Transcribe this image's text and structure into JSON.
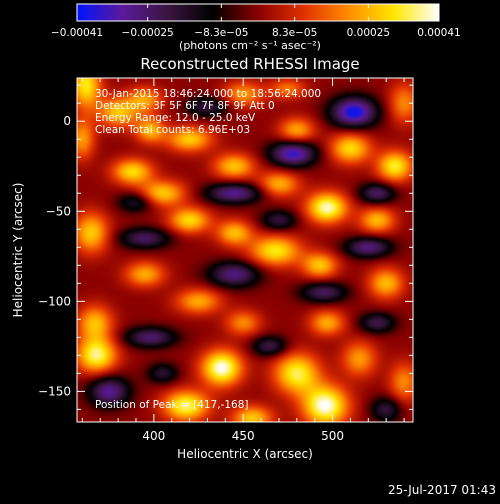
{
  "chart_data": {
    "type": "heatmap",
    "title": "Reconstructed RHESSI Image",
    "xlabel": "Heliocentric X (arcsec)",
    "ylabel": "Heliocentric Y (arcsec)",
    "xlim": [
      357,
      545
    ],
    "ylim": [
      -167,
      24
    ],
    "x_ticks": [
      400,
      450,
      500
    ],
    "x_tick_labels": [
      "400",
      "450",
      "500"
    ],
    "y_ticks": [
      0,
      -50,
      -100,
      -150
    ],
    "y_tick_labels": [
      "0",
      "−50",
      "−100",
      "−150"
    ],
    "colorbar": {
      "range": [
        -0.00041,
        0.00041
      ],
      "ticks": [
        -0.00041,
        -0.00025,
        -8.3e-05,
        8.3e-05,
        0.00025,
        0.00041
      ],
      "tick_labels": [
        "−0.00041",
        "−0.00025",
        "−8.3e−05",
        "8.3e−05",
        "0.00025",
        "0.00041"
      ],
      "units_label": "(photons cm⁻² s⁻¹ asec⁻²)",
      "colors": [
        "#0014ff",
        "#5a1a9a",
        "#3a1540",
        "#000000",
        "#8a0000",
        "#e03000",
        "#ff8c00",
        "#ffe600",
        "#ffffff"
      ]
    },
    "annotations": [
      "30-Jan-2015 18:46:24.000 to 18:56:24.000",
      "Detectors: 3F 5F 6F 7F 8F 9F Att 0",
      "Energy Range: 12.0 - 25.0 keV",
      "Clean     Total counts: 6.96E+03"
    ],
    "position_of_peak": "Position of Peak = [417,-168]",
    "sources": [
      {
        "x": 362,
        "y": 20,
        "v": 0.00032,
        "sx": 6,
        "sy": 9
      },
      {
        "x": 360,
        "y": -10,
        "v": 0.00022,
        "sx": 5,
        "sy": 8
      },
      {
        "x": 380,
        "y": 5,
        "v": 0.00027,
        "sx": 8,
        "sy": 6
      },
      {
        "x": 395,
        "y": 12,
        "v": 0.00022,
        "sx": 7,
        "sy": 5
      },
      {
        "x": 398,
        "y": -5,
        "v": 0.00025,
        "sx": 6,
        "sy": 5
      },
      {
        "x": 388,
        "y": -28,
        "v": 0.0003,
        "sx": 8,
        "sy": 5
      },
      {
        "x": 405,
        "y": -40,
        "v": 0.00028,
        "sx": 9,
        "sy": 5
      },
      {
        "x": 420,
        "y": -55,
        "v": 0.0003,
        "sx": 8,
        "sy": 5
      },
      {
        "x": 445,
        "y": -62,
        "v": 0.00026,
        "sx": 7,
        "sy": 5
      },
      {
        "x": 468,
        "y": -72,
        "v": 0.00032,
        "sx": 10,
        "sy": 6
      },
      {
        "x": 493,
        "y": -80,
        "v": 0.00027,
        "sx": 7,
        "sy": 5
      },
      {
        "x": 420,
        "y": -10,
        "v": 0.00028,
        "sx": 9,
        "sy": 5
      },
      {
        "x": 445,
        "y": -25,
        "v": 0.00027,
        "sx": 8,
        "sy": 5
      },
      {
        "x": 470,
        "y": -35,
        "v": 0.00025,
        "sx": 8,
        "sy": 5
      },
      {
        "x": 497,
        "y": -48,
        "v": 0.00039,
        "sx": 8,
        "sy": 6
      },
      {
        "x": 525,
        "y": -55,
        "v": 0.00026,
        "sx": 7,
        "sy": 5
      },
      {
        "x": 450,
        "y": 15,
        "v": 0.00022,
        "sx": 8,
        "sy": 5
      },
      {
        "x": 480,
        "y": -5,
        "v": 0.00024,
        "sx": 7,
        "sy": 5
      },
      {
        "x": 510,
        "y": -15,
        "v": 0.0003,
        "sx": 8,
        "sy": 6
      },
      {
        "x": 535,
        "y": -25,
        "v": 0.00033,
        "sx": 7,
        "sy": 6
      },
      {
        "x": 540,
        "y": 10,
        "v": 0.0002,
        "sx": 6,
        "sy": 8
      },
      {
        "x": 475,
        "y": 18,
        "v": 0.00018,
        "sx": 7,
        "sy": 4
      },
      {
        "x": 365,
        "y": -62,
        "v": 0.00028,
        "sx": 7,
        "sy": 8
      },
      {
        "x": 395,
        "y": -85,
        "v": 0.00024,
        "sx": 8,
        "sy": 5
      },
      {
        "x": 425,
        "y": -100,
        "v": 0.00024,
        "sx": 9,
        "sy": 5
      },
      {
        "x": 450,
        "y": -112,
        "v": 0.0002,
        "sx": 7,
        "sy": 5
      },
      {
        "x": 497,
        "y": -112,
        "v": 0.00024,
        "sx": 7,
        "sy": 5
      },
      {
        "x": 530,
        "y": -90,
        "v": 0.00026,
        "sx": 7,
        "sy": 6
      },
      {
        "x": 367,
        "y": -112,
        "v": 0.00026,
        "sx": 7,
        "sy": 7
      },
      {
        "x": 368,
        "y": -130,
        "v": 0.00036,
        "sx": 8,
        "sy": 7
      },
      {
        "x": 438,
        "y": -137,
        "v": 0.00041,
        "sx": 8,
        "sy": 7
      },
      {
        "x": 418,
        "y": -158,
        "v": 0.00036,
        "sx": 9,
        "sy": 6
      },
      {
        "x": 455,
        "y": -165,
        "v": 0.00028,
        "sx": 8,
        "sy": 5
      },
      {
        "x": 480,
        "y": -140,
        "v": 0.00034,
        "sx": 9,
        "sy": 8
      },
      {
        "x": 496,
        "y": -158,
        "v": 0.00041,
        "sx": 9,
        "sy": 8
      },
      {
        "x": 515,
        "y": -132,
        "v": 0.00022,
        "sx": 7,
        "sy": 7
      },
      {
        "x": 540,
        "y": -145,
        "v": 0.0002,
        "sx": 6,
        "sy": 8
      },
      {
        "x": 398,
        "y": -120,
        "v": -0.00026,
        "sx": 10,
        "sy": 4
      },
      {
        "x": 525,
        "y": -112,
        "v": -0.00022,
        "sx": 7,
        "sy": 4
      },
      {
        "x": 495,
        "y": -95,
        "v": -0.00024,
        "sx": 9,
        "sy": 4
      },
      {
        "x": 445,
        "y": -85,
        "v": -0.00028,
        "sx": 10,
        "sy": 5
      },
      {
        "x": 520,
        "y": -70,
        "v": -0.00028,
        "sx": 9,
        "sy": 4
      },
      {
        "x": 395,
        "y": -65,
        "v": -0.00024,
        "sx": 10,
        "sy": 4
      },
      {
        "x": 445,
        "y": -40,
        "v": -0.0003,
        "sx": 11,
        "sy": 4
      },
      {
        "x": 470,
        "y": -55,
        "v": -0.0002,
        "sx": 7,
        "sy": 4
      },
      {
        "x": 390,
        "y": -45,
        "v": -0.00018,
        "sx": 7,
        "sy": 4
      },
      {
        "x": 478,
        "y": -18,
        "v": -0.00036,
        "sx": 9,
        "sy": 5
      },
      {
        "x": 512,
        "y": 5,
        "v": -0.0004,
        "sx": 9,
        "sy": 6
      },
      {
        "x": 525,
        "y": -40,
        "v": -0.00025,
        "sx": 7,
        "sy": 4
      },
      {
        "x": 430,
        "y": 8,
        "v": -0.0002,
        "sx": 8,
        "sy": 4
      },
      {
        "x": 375,
        "y": -150,
        "v": -0.0003,
        "sx": 8,
        "sy": 6
      },
      {
        "x": 405,
        "y": -140,
        "v": -0.00018,
        "sx": 6,
        "sy": 4
      },
      {
        "x": 465,
        "y": -125,
        "v": -0.00022,
        "sx": 7,
        "sy": 4
      },
      {
        "x": 530,
        "y": -160,
        "v": -0.0002,
        "sx": 6,
        "sy": 5
      }
    ],
    "date_stamp": "25-Jul-2017 01:43"
  }
}
